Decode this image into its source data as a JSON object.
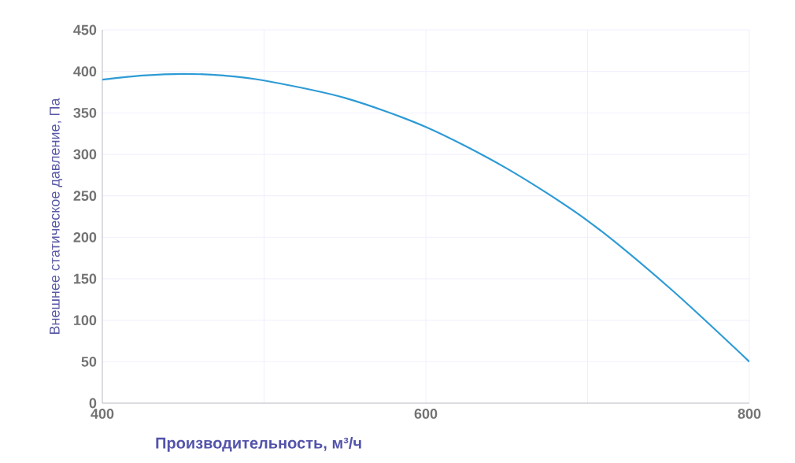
{
  "chart_data": {
    "type": "line",
    "xlabel": "Производительность, м³/ч",
    "ylabel": "Внешнее статическое давление, Па",
    "x": [
      400,
      425,
      450,
      475,
      500,
      550,
      600,
      650,
      700,
      750,
      800
    ],
    "series": [
      {
        "color": "#2e9bd6",
        "values": [
          390,
          395,
          397,
          395,
          389,
          368,
          333,
          283,
          220,
          140,
          50
        ]
      }
    ],
    "xlim": [
      400,
      800
    ],
    "ylim": [
      0,
      450
    ],
    "xticks": [
      400,
      {
        "value": 500,
        "label": null
      },
      600,
      {
        "value": 700,
        "label": null
      },
      800
    ],
    "yticks": [
      0,
      50,
      100,
      150,
      200,
      250,
      300,
      350,
      400,
      450
    ],
    "grid": true,
    "marker": "none",
    "line_style": "solid"
  }
}
